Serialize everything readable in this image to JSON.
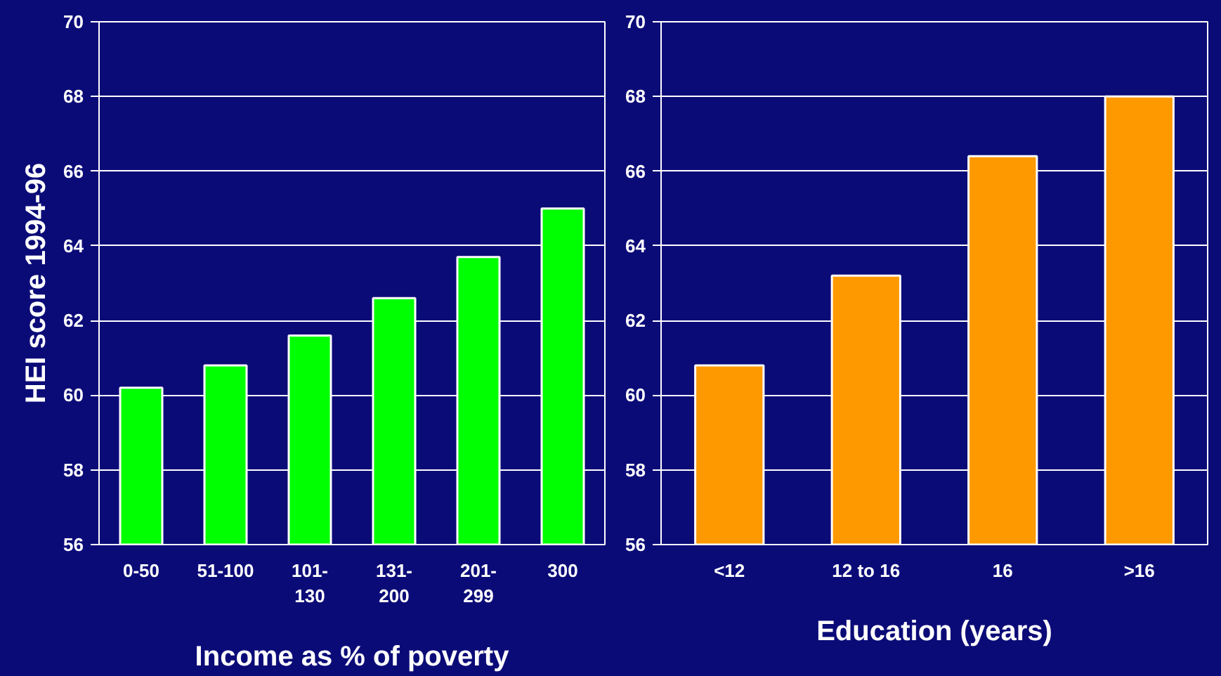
{
  "chart_data": [
    {
      "type": "bar",
      "ylabel": "HEI score 1994-96",
      "xlabel": "Income as % of poverty",
      "categories": [
        "0-50",
        "51-100",
        "101-\n130",
        "131-\n200",
        "201-\n299",
        "300"
      ],
      "values": [
        60.2,
        60.8,
        61.6,
        62.6,
        63.7,
        65.0
      ],
      "color": "#00ff00",
      "ylim": [
        56,
        70
      ],
      "yticks": [
        56,
        58,
        60,
        62,
        64,
        66,
        68,
        70
      ],
      "grid": "y"
    },
    {
      "type": "bar",
      "xlabel": "Education (years)",
      "categories": [
        "<12",
        "12 to 16",
        "16",
        ">16"
      ],
      "values": [
        60.8,
        63.2,
        66.4,
        68.0
      ],
      "color": "#ff9900",
      "ylim": [
        56,
        70
      ],
      "yticks": [
        56,
        58,
        60,
        62,
        64,
        66,
        68,
        70
      ],
      "grid": "y"
    }
  ]
}
